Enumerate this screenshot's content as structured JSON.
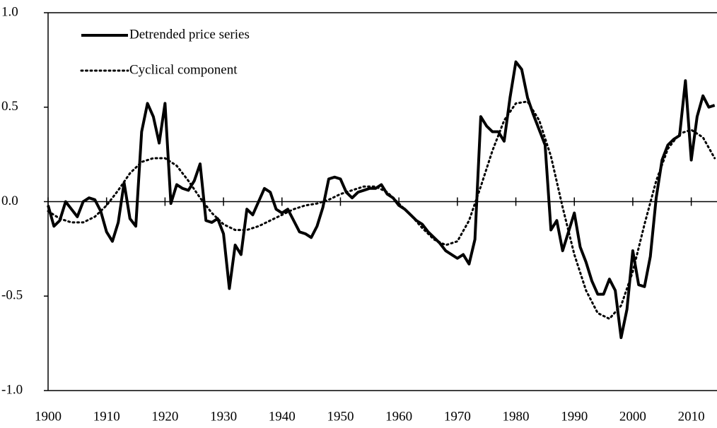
{
  "chart_data": {
    "type": "line",
    "series": [
      {
        "name": "Detrended price series",
        "color": "#000000",
        "style": "solid",
        "x": [
          1900,
          1901,
          1902,
          1903,
          1904,
          1905,
          1906,
          1907,
          1908,
          1909,
          1910,
          1911,
          1912,
          1913,
          1914,
          1915,
          1916,
          1917,
          1918,
          1919,
          1920,
          1921,
          1922,
          1923,
          1924,
          1925,
          1926,
          1927,
          1928,
          1929,
          1930,
          1931,
          1932,
          1933,
          1934,
          1935,
          1936,
          1937,
          1938,
          1939,
          1940,
          1941,
          1942,
          1943,
          1944,
          1945,
          1946,
          1947,
          1948,
          1949,
          1950,
          1951,
          1952,
          1953,
          1954,
          1955,
          1956,
          1957,
          1958,
          1959,
          1960,
          1961,
          1962,
          1963,
          1964,
          1965,
          1966,
          1967,
          1968,
          1969,
          1970,
          1971,
          1972,
          1973,
          1974,
          1975,
          1976,
          1977,
          1978,
          1979,
          1980,
          1981,
          1982,
          1983,
          1984,
          1985,
          1986,
          1987,
          1988,
          1989,
          1990,
          1991,
          1992,
          1993,
          1994,
          1995,
          1996,
          1997,
          1998,
          1999,
          2000,
          2001,
          2002,
          2003,
          2004,
          2005,
          2006,
          2007,
          2008,
          2009,
          2010,
          2011,
          2012,
          2013,
          2014
        ],
        "values": [
          -0.02,
          -0.13,
          -0.1,
          0.0,
          -0.04,
          -0.08,
          0.0,
          0.02,
          0.01,
          -0.05,
          -0.16,
          -0.21,
          -0.11,
          0.1,
          -0.09,
          -0.13,
          0.37,
          0.52,
          0.45,
          0.31,
          0.52,
          -0.01,
          0.09,
          0.07,
          0.06,
          0.11,
          0.2,
          -0.1,
          -0.11,
          -0.09,
          -0.17,
          -0.46,
          -0.23,
          -0.28,
          -0.04,
          -0.07,
          0.0,
          0.07,
          0.05,
          -0.04,
          -0.06,
          -0.04,
          -0.1,
          -0.16,
          -0.17,
          -0.19,
          -0.13,
          -0.03,
          0.12,
          0.13,
          0.12,
          0.05,
          0.02,
          0.05,
          0.06,
          0.07,
          0.07,
          0.09,
          0.04,
          0.02,
          -0.02,
          -0.04,
          -0.07,
          -0.1,
          -0.12,
          -0.16,
          -0.19,
          -0.22,
          -0.26,
          -0.28,
          -0.3,
          -0.28,
          -0.33,
          -0.2,
          0.45,
          0.4,
          0.37,
          0.37,
          0.32,
          0.55,
          0.74,
          0.7,
          0.55,
          0.46,
          0.38,
          0.3,
          -0.15,
          -0.1,
          -0.26,
          -0.16,
          -0.06,
          -0.24,
          -0.32,
          -0.42,
          -0.49,
          -0.49,
          -0.41,
          -0.47,
          -0.72,
          -0.57,
          -0.26,
          -0.44,
          -0.45,
          -0.29,
          0.02,
          0.22,
          0.3,
          0.33,
          0.35,
          0.64,
          0.22,
          0.45,
          0.56,
          0.5,
          0.51
        ]
      },
      {
        "name": "Cyclical component",
        "color": "#000000",
        "style": "dotted",
        "x": [
          1900,
          1902,
          1904,
          1906,
          1908,
          1910,
          1912,
          1914,
          1916,
          1918,
          1920,
          1922,
          1924,
          1926,
          1928,
          1930,
          1932,
          1934,
          1936,
          1938,
          1940,
          1942,
          1944,
          1946,
          1948,
          1950,
          1952,
          1954,
          1956,
          1958,
          1960,
          1962,
          1964,
          1966,
          1968,
          1970,
          1972,
          1974,
          1976,
          1978,
          1980,
          1982,
          1984,
          1986,
          1988,
          1990,
          1992,
          1994,
          1996,
          1998,
          2000,
          2002,
          2004,
          2006,
          2008,
          2010,
          2012,
          2014
        ],
        "values": [
          -0.05,
          -0.09,
          -0.11,
          -0.11,
          -0.08,
          -0.02,
          0.06,
          0.15,
          0.21,
          0.23,
          0.23,
          0.19,
          0.11,
          0.02,
          -0.06,
          -0.12,
          -0.15,
          -0.15,
          -0.13,
          -0.1,
          -0.07,
          -0.04,
          -0.02,
          -0.01,
          0.01,
          0.04,
          0.06,
          0.08,
          0.08,
          0.05,
          -0.01,
          -0.07,
          -0.14,
          -0.2,
          -0.23,
          -0.21,
          -0.1,
          0.08,
          0.27,
          0.43,
          0.52,
          0.53,
          0.43,
          0.24,
          -0.03,
          -0.28,
          -0.47,
          -0.59,
          -0.62,
          -0.55,
          -0.37,
          -0.12,
          0.11,
          0.28,
          0.36,
          0.38,
          0.34,
          0.23
        ]
      }
    ],
    "xlim": [
      1900,
      2014.4
    ],
    "xticks": [
      1900,
      1910,
      1920,
      1930,
      1940,
      1950,
      1960,
      1970,
      1980,
      1990,
      2000,
      2010
    ],
    "ylim": [
      -1,
      1
    ],
    "yticks": [
      {
        "value": 1,
        "label": "1.0"
      },
      {
        "value": 0.5,
        "label": "0.5"
      },
      {
        "value": 0,
        "label": "0.0"
      },
      {
        "value": -0.5,
        "label": "-0.5"
      },
      {
        "value": -1,
        "label": "-1.0"
      }
    ],
    "legend": "top-left"
  }
}
